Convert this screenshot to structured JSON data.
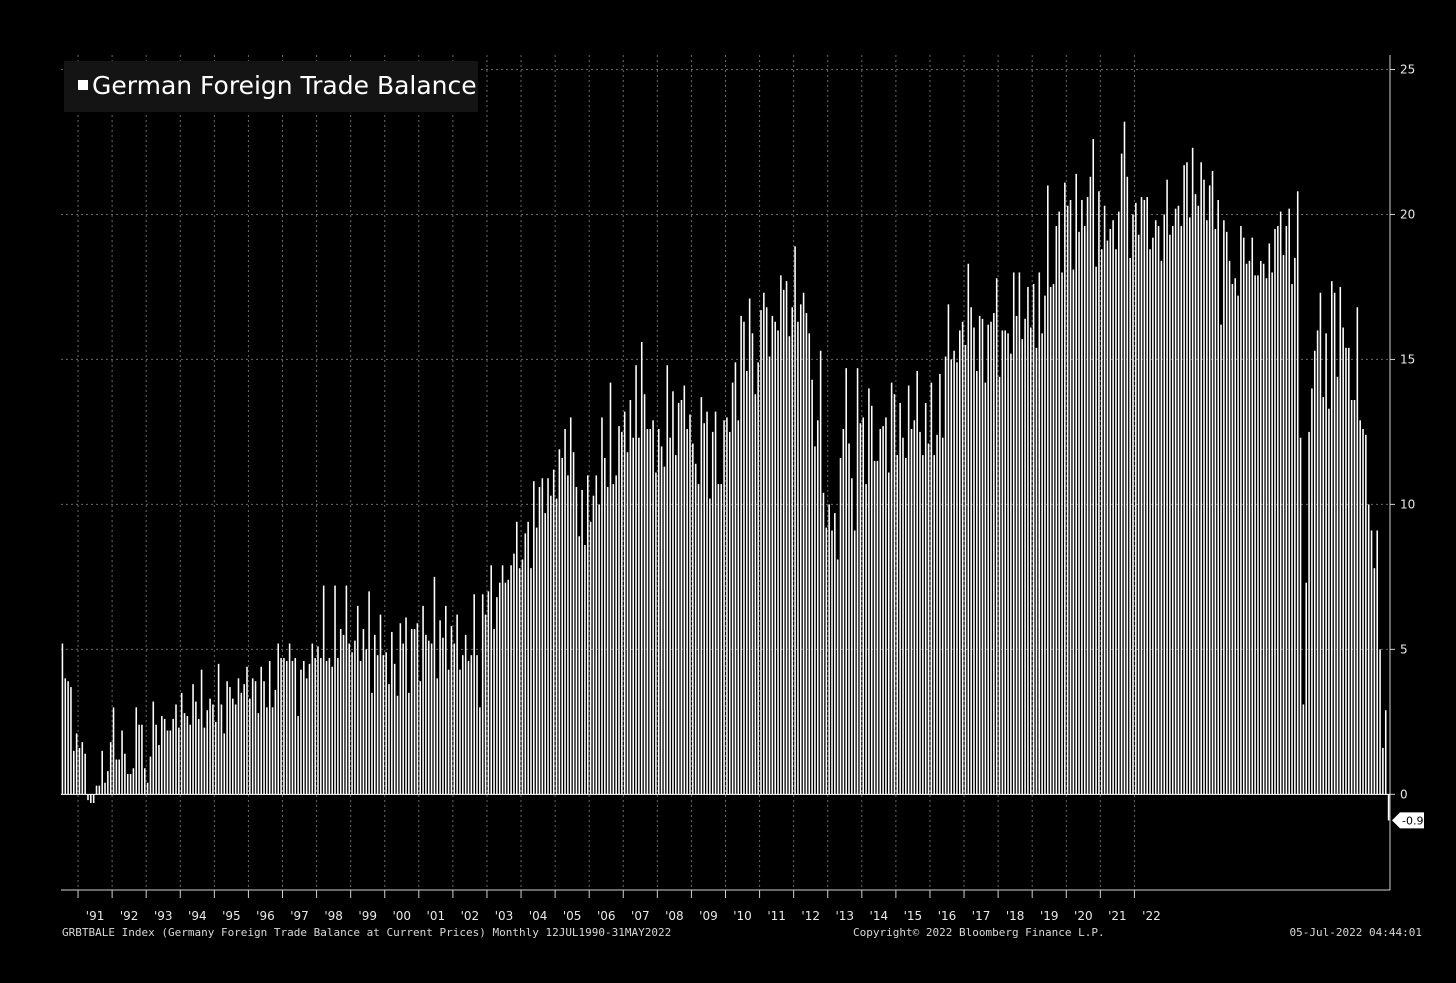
{
  "legend": {
    "label": "German Foreign Trade Balance"
  },
  "footer": {
    "left": "GRBTBALE Index (Germany Foreign Trade Balance at Current Prices)  Monthly 12JUL1990-31MAY2022",
    "center": "Copyright© 2022 Bloomberg Finance L.P.",
    "right": "05-Jul-2022 04:44:01"
  },
  "colors": {
    "background": "#000000",
    "bars": "#ffffff",
    "grid": "#6a6a6a"
  },
  "chart_data": {
    "type": "bar",
    "frequency": "monthly",
    "start": "1990-07",
    "end": "2022-05",
    "ylim": [
      -3.3,
      25.5
    ],
    "yticks": [
      0,
      5,
      10,
      15,
      20,
      25
    ],
    "xticks": [
      "'91",
      "'92",
      "'93",
      "'94",
      "'95",
      "'96",
      "'97",
      "'98",
      "'99",
      "'00",
      "'01",
      "'02",
      "'03",
      "'04",
      "'05",
      "'06",
      "'07",
      "'08",
      "'09",
      "'10",
      "'11",
      "'12",
      "'13",
      "'14",
      "'15",
      "'16",
      "'17",
      "'18",
      "'19",
      "'20",
      "'21",
      "'22"
    ],
    "last_value_label": "-0.9",
    "grid": true,
    "legend_position": "top-left",
    "values": [
      5.2,
      4.0,
      3.9,
      3.7,
      1.5,
      2.1,
      1.6,
      1.8,
      1.4,
      -0.2,
      -0.3,
      -0.3,
      0.3,
      0.3,
      1.5,
      0.4,
      0.8,
      1.8,
      3.0,
      1.2,
      1.2,
      2.2,
      1.4,
      0.7,
      0.7,
      0.9,
      3.0,
      2.4,
      2.4,
      0.9,
      0.4,
      1.3,
      3.2,
      2.4,
      1.7,
      2.7,
      2.6,
      2.2,
      2.2,
      2.6,
      3.1,
      2.3,
      3.5,
      2.8,
      2.7,
      2.4,
      3.8,
      3.2,
      2.6,
      4.3,
      2.3,
      2.9,
      3.3,
      3.1,
      2.5,
      4.5,
      3.1,
      2.1,
      3.9,
      3.7,
      3.3,
      3.1,
      4.0,
      3.5,
      3.8,
      4.4,
      3.3,
      4.0,
      3.9,
      2.8,
      4.4,
      3.9,
      3.0,
      4.6,
      3.0,
      3.6,
      5.2,
      4.7,
      4.7,
      4.6,
      5.2,
      4.6,
      4.7,
      2.7,
      4.3,
      4.6,
      4.0,
      4.5,
      5.2,
      4.7,
      5.1,
      4.7,
      7.2,
      4.6,
      4.7,
      4.4,
      7.2,
      4.7,
      5.7,
      5.5,
      7.2,
      5.2,
      4.9,
      5.3,
      6.5,
      4.6,
      5.7,
      5.0,
      7.0,
      3.5,
      5.5,
      4.8,
      6.2,
      4.8,
      4.9,
      3.8,
      5.6,
      4.5,
      3.4,
      5.9,
      5.2,
      6.1,
      3.5,
      5.7,
      5.7,
      5.9,
      3.9,
      6.5,
      5.5,
      5.3,
      5.2,
      7.5,
      4.0,
      6.0,
      5.4,
      6.5,
      4.3,
      5.8,
      5.2,
      6.2,
      4.3,
      4.8,
      5.5,
      4.6,
      4.8,
      6.9,
      4.8,
      3.0,
      6.9,
      6.2,
      7.0,
      7.9,
      5.7,
      6.8,
      7.3,
      7.9,
      7.3,
      7.4,
      7.9,
      8.3,
      9.4,
      7.8,
      8.1,
      9.0,
      9.4,
      7.8,
      10.8,
      9.2,
      10.6,
      10.9,
      9.7,
      10.9,
      10.3,
      11.2,
      10.2,
      11.9,
      11.6,
      12.6,
      11.0,
      13.0,
      11.8,
      10.6,
      8.9,
      10.5,
      8.6,
      11.0,
      9.4,
      10.3,
      11.0,
      10.0,
      13.0,
      11.6,
      10.6,
      14.2,
      10.7,
      11.0,
      12.7,
      12.5,
      13.2,
      11.8,
      13.6,
      12.3,
      14.8,
      12.3,
      15.6,
      13.8,
      12.6,
      12.6,
      12.9,
      11.1,
      12.6,
      12.0,
      11.3,
      14.8,
      12.3,
      13.9,
      11.7,
      13.5,
      13.6,
      14.1,
      12.6,
      13.1,
      12.1,
      11.4,
      10.7,
      13.7,
      12.8,
      13.2,
      10.2,
      12.5,
      13.2,
      10.7,
      10.7,
      12.9,
      13.0,
      12.5,
      14.2,
      14.9,
      12.9,
      16.5,
      16.3,
      14.6,
      17.1,
      15.9,
      13.8,
      14.9,
      16.7,
      17.3,
      16.8,
      15.1,
      16.5,
      16.3,
      16.0,
      17.9,
      17.4,
      17.7,
      15.8,
      16.8,
      18.9,
      16.3,
      16.9,
      17.3,
      16.6,
      15.9,
      14.3,
      12.0,
      12.9,
      15.3,
      10.4,
      9.2,
      10.0,
      9.1,
      9.7,
      8.1,
      11.6,
      12.6,
      14.7,
      12.1,
      10.9,
      9.1,
      14.7,
      12.8,
      13.0,
      10.7,
      14.0,
      13.4,
      11.5,
      11.5,
      12.6,
      12.7,
      13.0,
      11.1,
      14.2,
      13.8,
      11.7,
      13.5,
      12.3,
      11.6,
      14.1,
      12.6,
      12.9,
      14.6,
      12.5,
      11.7,
      13.5,
      12.1,
      14.2,
      11.7,
      12.4,
      14.5,
      12.3,
      15.1,
      16.9,
      15.0,
      15.3,
      14.9,
      16.0,
      16.3,
      15.5,
      18.3,
      16.8,
      16.1,
      14.6,
      16.5,
      16.4,
      14.2,
      16.2,
      16.3,
      16.6,
      17.8,
      14.4,
      16.0,
      16.0,
      15.9,
      15.2,
      18.0,
      16.5,
      18.0,
      15.7,
      16.4,
      17.5,
      16.1,
      17.6,
      15.4,
      18.0,
      15.9,
      17.2,
      21.0,
      17.5,
      17.6,
      19.6,
      20.1,
      18.0,
      21.1,
      20.3,
      20.5,
      18.1,
      21.4,
      19.4,
      20.5,
      19.6,
      20.6,
      21.3,
      22.6,
      18.2,
      20.8,
      18.8,
      20.3,
      19.1,
      19.5,
      19.8,
      18.8,
      20.1,
      22.1,
      23.2,
      21.3,
      18.5,
      20.0,
      20.4,
      19.3,
      20.6,
      20.5,
      20.6,
      18.8,
      19.2,
      19.8,
      19.6,
      18.4,
      20.0,
      21.2,
      19.3,
      19.6,
      20.2,
      20.3,
      19.6,
      21.7,
      21.8,
      19.9,
      22.3,
      20.7,
      20.3,
      21.8,
      21.2,
      19.8,
      21.0,
      21.5,
      19.5,
      20.5,
      16.2,
      19.8,
      19.4,
      18.4,
      17.6,
      17.8,
      17.2,
      19.6,
      19.2,
      18.3,
      18.4,
      19.2,
      17.9,
      17.9,
      18.4,
      18.3,
      17.8,
      19.0,
      18.0,
      19.5,
      19.6,
      20.1,
      18.6,
      19.6,
      20.2,
      17.6,
      18.5,
      20.8,
      12.3,
      3.1,
      7.3,
      12.5,
      14.0,
      15.3,
      16.0,
      17.3,
      13.7,
      15.9,
      13.3,
      17.7,
      17.3,
      14.4,
      17.5,
      16.1,
      15.4,
      15.4,
      13.6,
      13.6,
      16.8,
      12.9,
      12.6,
      12.4,
      10.0,
      9.1,
      7.8,
      9.1,
      5.0,
      1.6,
      2.9,
      -0.9
    ]
  }
}
